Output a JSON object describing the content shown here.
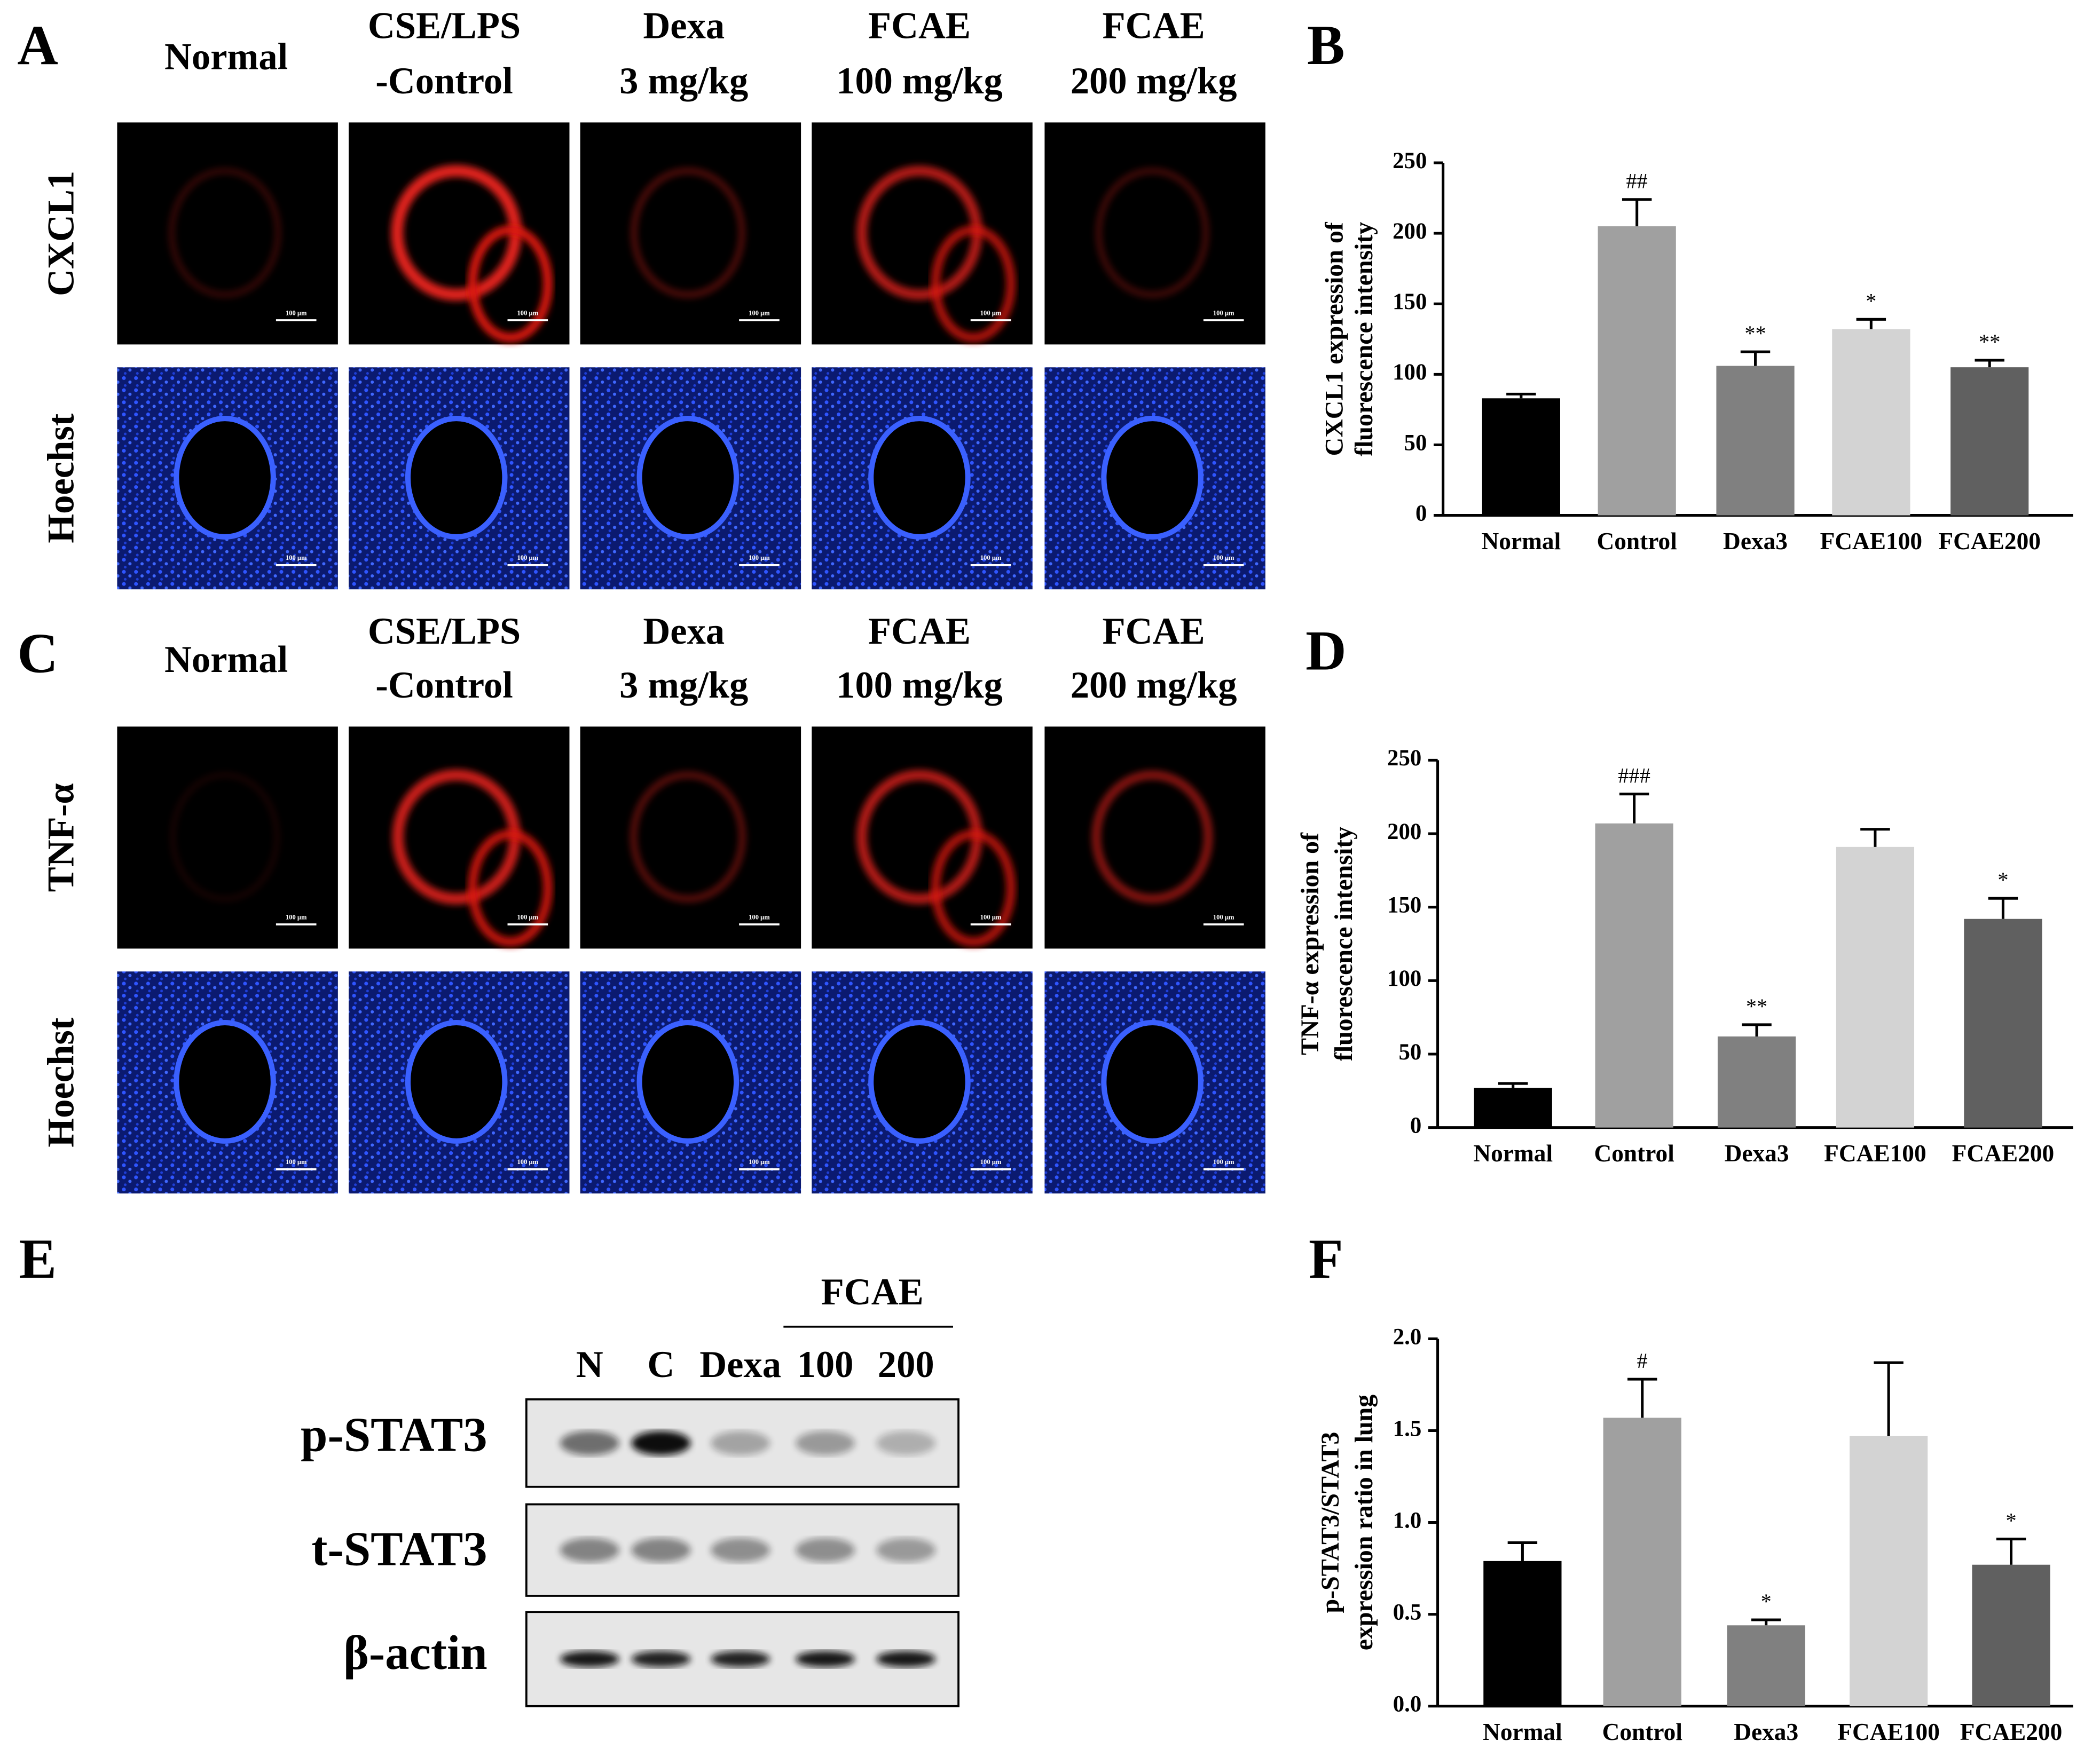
{
  "chart_data": [
    {
      "type": "bar",
      "panel": "B",
      "ylabel": [
        "CXCL1 expression of",
        "fluorescence intensity"
      ],
      "categories": [
        "Normal",
        "Control",
        "Dexa3",
        "FCAE100",
        "FCAE200"
      ],
      "values": [
        83,
        205,
        106,
        132,
        105
      ],
      "errors": [
        3,
        19,
        10,
        7,
        5
      ],
      "annotations": [
        null,
        "##",
        "**",
        "*",
        "**"
      ],
      "colors": [
        "#000000",
        "#a0a0a0",
        "#808080",
        "#d3d3d3",
        "#606060"
      ],
      "ylim": [
        0,
        250
      ],
      "yticks": [
        0,
        50,
        100,
        150,
        200,
        250
      ]
    },
    {
      "type": "bar",
      "panel": "D",
      "ylabel": [
        "TNF-α expression of",
        "fluorescence intensity"
      ],
      "categories": [
        "Normal",
        "Control",
        "Dexa3",
        "FCAE100",
        "FCAE200"
      ],
      "values": [
        27,
        207,
        62,
        191,
        142
      ],
      "errors": [
        3,
        20,
        8,
        12,
        14
      ],
      "annotations": [
        null,
        "###",
        "**",
        null,
        "*"
      ],
      "colors": [
        "#000000",
        "#a0a0a0",
        "#808080",
        "#d3d3d3",
        "#606060"
      ],
      "ylim": [
        0,
        250
      ],
      "yticks": [
        0,
        50,
        100,
        150,
        200,
        250
      ]
    },
    {
      "type": "bar",
      "panel": "F",
      "ylabel": [
        "p-STAT3/STAT3",
        "expression ratio in lung"
      ],
      "categories": [
        "Normal",
        "Control",
        "Dexa3",
        "FCAE100",
        "FCAE200"
      ],
      "values": [
        0.79,
        1.57,
        0.44,
        1.47,
        0.77
      ],
      "errors": [
        0.1,
        0.21,
        0.03,
        0.4,
        0.14
      ],
      "annotations": [
        null,
        "#",
        "*",
        null,
        "*"
      ],
      "colors": [
        "#000000",
        "#a0a0a0",
        "#808080",
        "#d3d3d3",
        "#606060"
      ],
      "ylim": [
        0,
        2.0
      ],
      "yticks": [
        {
          "value": 0,
          "label": "0.0"
        },
        0.5,
        {
          "value": 1,
          "label": "1.0"
        },
        1.5,
        {
          "value": 2,
          "label": "2.0"
        }
      ]
    }
  ],
  "panel_A": {
    "panel": "A",
    "columns": [
      [
        "Normal"
      ],
      [
        "CSE/LPS",
        "-Control"
      ],
      [
        "Dexa",
        "3 mg/kg"
      ],
      [
        "FCAE",
        "100 mg/kg"
      ],
      [
        "FCAE",
        "200 mg/kg"
      ]
    ],
    "rows": [
      "CXCL1",
      "Hoechst"
    ],
    "scale_bar": "100 μm"
  },
  "panel_C": {
    "panel": "C",
    "columns": [
      [
        "Normal"
      ],
      [
        "CSE/LPS",
        "-Control"
      ],
      [
        "Dexa",
        "3 mg/kg"
      ],
      [
        "FCAE",
        "100 mg/kg"
      ],
      [
        "FCAE",
        "200 mg/kg"
      ]
    ],
    "rows": [
      "TNF-α",
      "Hoechst"
    ],
    "scale_bar": "100 μm"
  },
  "panel_E": {
    "panel": "E",
    "group": "FCAE",
    "lanes": [
      "N",
      "C",
      "Dexa",
      "100",
      "200"
    ],
    "rows": [
      "p-STAT3",
      "t-STAT3",
      "β-actin"
    ]
  }
}
